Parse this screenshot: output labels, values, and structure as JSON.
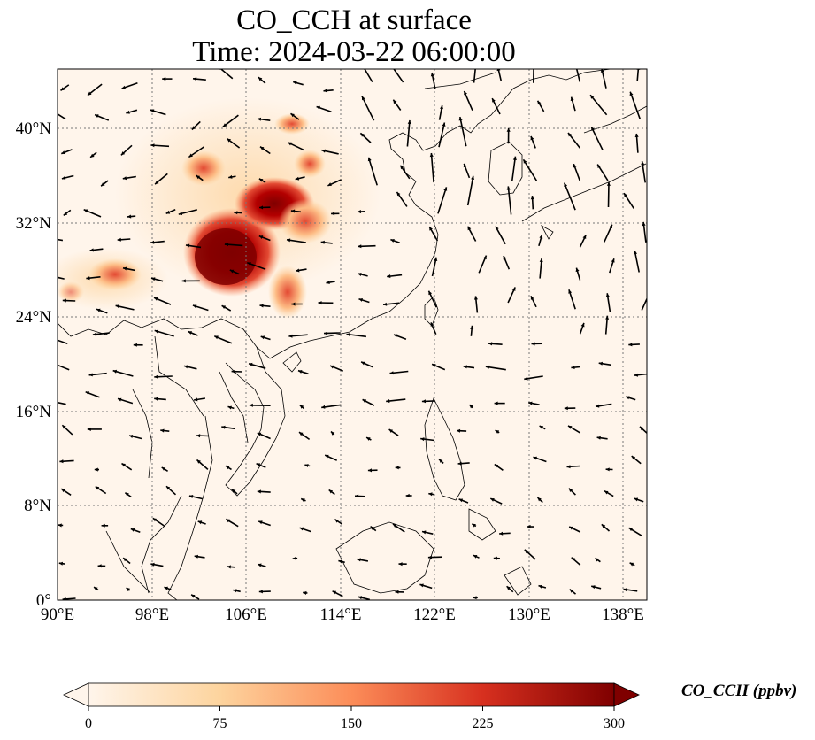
{
  "title": {
    "line1": "CO_CCH at surface",
    "line2": "Time: 2024-03-22 06:00:00"
  },
  "map": {
    "lon_range": [
      90,
      140
    ],
    "lat_range": [
      0,
      45
    ],
    "lon_ticks": [
      "90°E",
      "98°E",
      "106°E",
      "114°E",
      "122°E",
      "130°E",
      "138°E"
    ],
    "lat_ticks": [
      "0°",
      "8°N",
      "16°N",
      "24°N",
      "32°N",
      "40°N"
    ],
    "gridlines": "dotted",
    "background_color": "#fff5eb",
    "wind_vectors": true
  },
  "colorbar": {
    "label": "CO_CCH (ppbv)",
    "ticks": [
      "0",
      "75",
      "150",
      "225",
      "300"
    ],
    "range": [
      0,
      300
    ],
    "colormap": "OrRd",
    "colors": [
      "#fff5eb",
      "#fdd49e",
      "#fc8d59",
      "#d7301f",
      "#7f0000"
    ],
    "extend": "both"
  }
}
